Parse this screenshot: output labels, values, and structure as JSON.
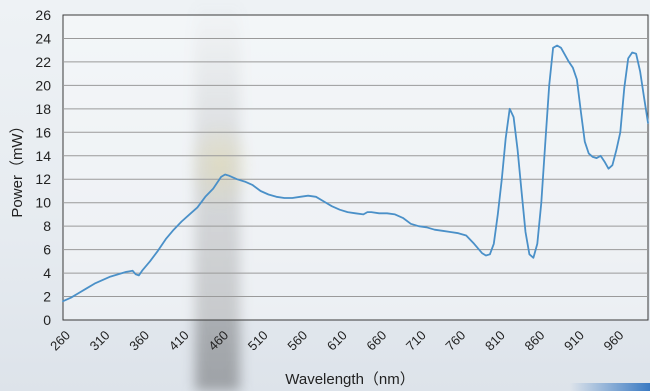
{
  "chart_data": {
    "type": "line",
    "title": "",
    "xlabel": "Wavelength（nm）",
    "ylabel": "Power（mW）",
    "xlim": [
      260,
      1000
    ],
    "ylim": [
      0,
      26
    ],
    "x_ticks": [
      "260",
      "310",
      "360",
      "410",
      "460",
      "510",
      "560",
      "610",
      "660",
      "710",
      "760",
      "810",
      "860",
      "910",
      "960"
    ],
    "y_ticks": [
      "0",
      "2",
      "4",
      "6",
      "8",
      "10",
      "12",
      "14",
      "16",
      "18",
      "20",
      "22",
      "24",
      "26"
    ],
    "grid": true,
    "line_color": "#4a90c8",
    "series": [
      {
        "x": [
          260,
          270,
          280,
          290,
          300,
          310,
          320,
          330,
          340,
          348,
          352,
          356,
          360,
          370,
          380,
          390,
          400,
          410,
          420,
          430,
          440,
          450,
          460,
          465,
          470,
          480,
          490,
          500,
          510,
          520,
          530,
          540,
          550,
          560,
          570,
          580,
          590,
          600,
          610,
          620,
          630,
          640,
          645,
          650,
          660,
          670,
          680,
          690,
          700,
          710,
          720,
          730,
          740,
          750,
          760,
          770,
          780,
          790,
          795,
          800,
          805,
          810,
          815,
          820,
          825,
          830,
          835,
          840,
          845,
          850,
          855,
          860,
          865,
          870,
          875,
          880,
          885,
          890,
          895,
          900,
          905,
          910,
          915,
          920,
          925,
          930,
          935,
          940,
          945,
          950,
          955,
          960,
          965,
          970,
          975,
          980,
          985,
          990,
          995,
          1000
        ],
        "y": [
          1.6,
          1.9,
          2.3,
          2.7,
          3.1,
          3.4,
          3.7,
          3.9,
          4.1,
          4.2,
          3.9,
          3.8,
          4.2,
          5.0,
          5.9,
          6.9,
          7.7,
          8.4,
          9.0,
          9.6,
          10.5,
          11.2,
          12.2,
          12.4,
          12.3,
          12.0,
          11.8,
          11.5,
          11.0,
          10.7,
          10.5,
          10.4,
          10.4,
          10.5,
          10.6,
          10.5,
          10.1,
          9.7,
          9.4,
          9.2,
          9.1,
          9.0,
          9.2,
          9.2,
          9.1,
          9.1,
          9.0,
          8.7,
          8.2,
          8.0,
          7.9,
          7.7,
          7.6,
          7.5,
          7.4,
          7.2,
          6.5,
          5.7,
          5.5,
          5.6,
          6.5,
          9.0,
          12.0,
          15.5,
          18.0,
          17.3,
          14.5,
          11.0,
          7.5,
          5.6,
          5.3,
          6.5,
          10.0,
          15.0,
          20.0,
          23.2,
          23.4,
          23.2,
          22.6,
          22.0,
          21.5,
          20.5,
          17.8,
          15.2,
          14.2,
          13.9,
          13.8,
          14.0,
          13.5,
          12.9,
          13.2,
          14.5,
          16.0,
          19.8,
          22.3,
          22.8,
          22.7,
          21.2,
          19.0,
          16.8
        ]
      }
    ]
  }
}
